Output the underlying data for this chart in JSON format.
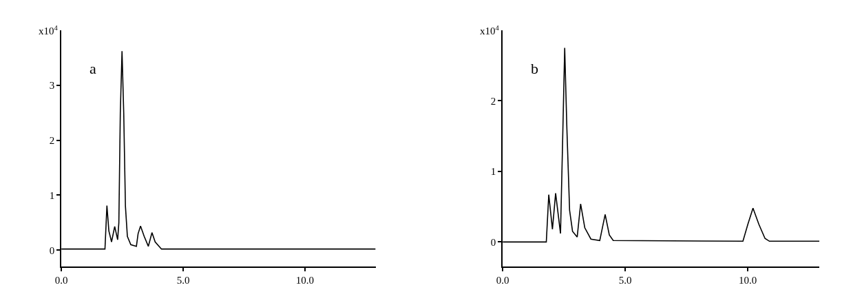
{
  "chart_data": [
    {
      "type": "line",
      "title": "a",
      "ylabel": "x10$^{4}$",
      "x": [
        0,
        1.79,
        1.87,
        1.95,
        2.06,
        2.19,
        2.31,
        2.36,
        2.42,
        2.49,
        2.56,
        2.63,
        2.71,
        2.85,
        3.08,
        3.15,
        3.25,
        3.4,
        3.57,
        3.72,
        3.85,
        4.11,
        12.9
      ],
      "series": [
        {
          "color": "#000000",
          "values": [
            0.02,
            0.02,
            0.81,
            0.35,
            0.15,
            0.43,
            0.19,
            0.5,
            2.5,
            3.62,
            2.5,
            0.8,
            0.25,
            0.1,
            0.07,
            0.3,
            0.44,
            0.25,
            0.07,
            0.32,
            0.15,
            0.02,
            0.02
          ]
        }
      ],
      "xlim": [
        0,
        12.9
      ],
      "xticks": [
        {
          "value": 0,
          "label": "0.0"
        },
        {
          "value": 5,
          "label": "5.0"
        },
        {
          "value": 10,
          "label": "10.0"
        }
      ],
      "ylim": [
        -0.3,
        4.0
      ],
      "yticks": [
        0,
        1,
        2,
        3
      ],
      "line_style": "solid"
    },
    {
      "type": "line",
      "title": "b",
      "ylabel": "x10$^{4}$",
      "x": [
        0,
        1.78,
        1.88,
        2.03,
        2.16,
        2.36,
        2.45,
        2.53,
        2.62,
        2.73,
        2.85,
        3.04,
        3.18,
        3.35,
        3.6,
        3.96,
        4.18,
        4.35,
        4.51,
        9.8,
        10.0,
        10.21,
        10.45,
        10.7,
        10.88,
        12.92
      ],
      "series": [
        {
          "color": "#000000",
          "values": [
            0,
            0,
            0.67,
            0.18,
            0.69,
            0.12,
            1.5,
            2.75,
            1.6,
            0.45,
            0.15,
            0.07,
            0.54,
            0.2,
            0.04,
            0.02,
            0.39,
            0.1,
            0.02,
            0.01,
            0.25,
            0.48,
            0.25,
            0.05,
            0.01,
            0.01
          ]
        }
      ],
      "xlim": [
        0,
        12.92
      ],
      "xticks": [
        {
          "value": 0,
          "label": "0.0"
        },
        {
          "value": 5,
          "label": "5.0"
        },
        {
          "value": 10,
          "label": "10.0"
        }
      ],
      "ylim": [
        -0.35,
        3.0
      ],
      "yticks": [
        0,
        1,
        2
      ],
      "line_style": "solid"
    }
  ]
}
